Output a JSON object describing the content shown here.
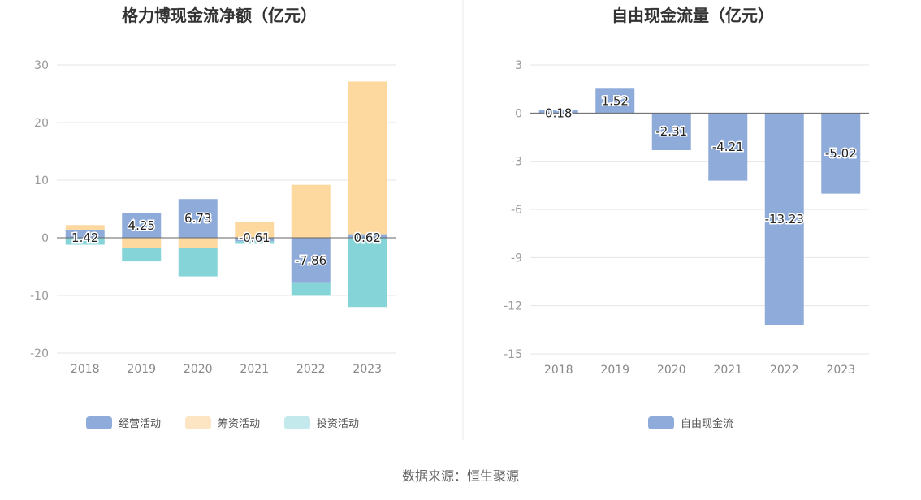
{
  "source_text": "数据来源：恒生聚源",
  "colors": {
    "operating": "#8fabda",
    "financing": "#fdd89f",
    "investing": "#85d4d8",
    "investing_legend": "#c3e9ec",
    "financing_legend": "#fde5c3",
    "free_cash": "#8fabda",
    "grid": "#e6e6e6",
    "axis": "#666666"
  },
  "chart_data": [
    {
      "type": "bar",
      "stacked": true,
      "title": "格力博现金流净额（亿元）",
      "categories": [
        "2018",
        "2019",
        "2020",
        "2021",
        "2022",
        "2023"
      ],
      "ylim": [
        -20,
        30
      ],
      "yticks": [
        30,
        20,
        10,
        0,
        -10,
        -20
      ],
      "grid": true,
      "legend_position": "bottom",
      "series": [
        {
          "name": "经营活动",
          "key": "operating",
          "values": [
            1.42,
            4.25,
            6.73,
            -0.61,
            -7.86,
            0.62
          ],
          "labels": [
            "1.42",
            "4.25",
            "6.73",
            "-0.61",
            "-7.86",
            "0.62"
          ]
        },
        {
          "name": "筹资活动",
          "key": "financing",
          "values": [
            0.8,
            -1.7,
            -1.8,
            2.7,
            9.2,
            26.5
          ]
        },
        {
          "name": "投资活动",
          "key": "investing",
          "values": [
            -1.2,
            -2.4,
            -4.9,
            -0.3,
            -2.2,
            -12.0
          ]
        }
      ]
    },
    {
      "type": "bar",
      "title": "自由现金流量（亿元）",
      "categories": [
        "2018",
        "2019",
        "2020",
        "2021",
        "2022",
        "2023"
      ],
      "ylim": [
        -15,
        3
      ],
      "yticks": [
        3,
        0,
        -3,
        -6,
        -9,
        -12,
        -15
      ],
      "grid": true,
      "legend_position": "bottom",
      "series": [
        {
          "name": "自由现金流",
          "key": "free_cash",
          "values": [
            0.18,
            1.52,
            -2.31,
            -4.21,
            -13.23,
            -5.02
          ],
          "labels": [
            "0.18",
            "1.52",
            "-2.31",
            "-4.21",
            "-13.23",
            "-5.02"
          ]
        }
      ]
    }
  ]
}
